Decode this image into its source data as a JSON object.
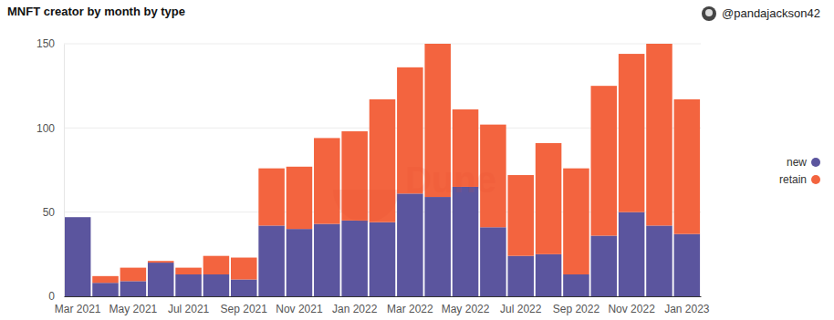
{
  "chart_data": {
    "type": "bar",
    "title": "MNFT creator by month by type",
    "subtitle": "@pandajackson42",
    "annotations": [
      "Dune"
    ],
    "stacked": true,
    "grid": true,
    "legend": "right",
    "categories": [
      "Mar 2021",
      null,
      "May 2021",
      null,
      "Jul 2021",
      null,
      "Sep 2021",
      null,
      "Nov 2021",
      null,
      "Jan 2022",
      null,
      "Mar 2022",
      null,
      "May 2022",
      null,
      "Jul 2022",
      null,
      "Sep 2022",
      null,
      "Nov 2022",
      null,
      "Jan 2023"
    ],
    "series": [
      {
        "name": "new",
        "color": "#5b559e",
        "values": [
          47,
          8,
          9,
          20,
          13,
          13,
          10,
          42,
          40,
          43,
          45,
          44,
          61,
          59,
          65,
          41,
          24,
          25,
          13,
          36,
          50,
          42,
          37
        ]
      },
      {
        "name": "retain",
        "color": "#f3643f",
        "values": [
          0,
          4,
          8,
          1,
          4,
          11,
          13,
          34,
          37,
          51,
          53,
          73,
          75,
          91,
          46,
          61,
          48,
          66,
          63,
          89,
          94,
          108,
          80
        ]
      }
    ],
    "ylim": [
      0,
      150
    ],
    "yticks": [
      0,
      50,
      100,
      150
    ]
  }
}
